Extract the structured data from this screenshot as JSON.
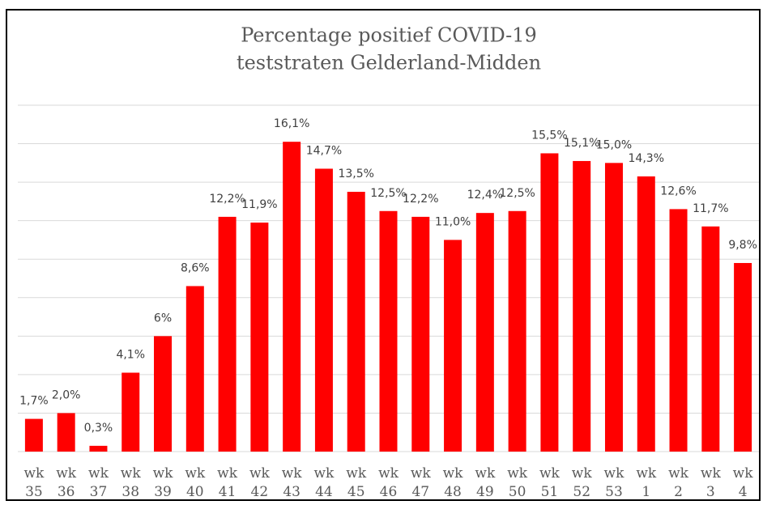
{
  "chart_data": {
    "type": "bar",
    "title": [
      "Percentage positief COVID-19",
      "teststraten Gelderland-Midden"
    ],
    "categories": [
      "wk 35",
      "wk 36",
      "wk 37",
      "wk 38",
      "wk 39",
      "wk 40",
      "wk 41",
      "wk 42",
      "wk 43",
      "wk 44",
      "wk 45",
      "wk 46",
      "wk 47",
      "wk 48",
      "wk 49",
      "wk 50",
      "wk 51",
      "wk 52",
      "wk 53",
      "wk 1",
      "wk 2",
      "wk 3",
      "wk 4"
    ],
    "values": [
      1.7,
      2.0,
      0.3,
      4.1,
      6,
      8.6,
      12.2,
      11.9,
      16.1,
      14.7,
      13.5,
      12.5,
      12.2,
      11.0,
      12.4,
      12.5,
      15.5,
      15.1,
      15.0,
      14.3,
      12.6,
      11.7,
      9.8
    ],
    "value_labels": [
      "1,7%",
      "2,0%",
      "0,3%",
      "4,1%",
      "6%",
      "8,6%",
      "12,2%",
      "11,9%",
      "16,1%",
      "14,7%",
      "13,5%",
      "12,5%",
      "12,2%",
      "11,0%",
      "12,4%",
      "12,5%",
      "15,5%",
      "15,1%",
      "15,0%",
      "14,3%",
      "12,6%",
      "11,7%",
      "9,8%"
    ],
    "color": "#ff0000",
    "ylim": [
      0,
      18
    ],
    "yticks": [
      0,
      2,
      4,
      6,
      8,
      10,
      12,
      14,
      16,
      18
    ],
    "grid": true
  }
}
